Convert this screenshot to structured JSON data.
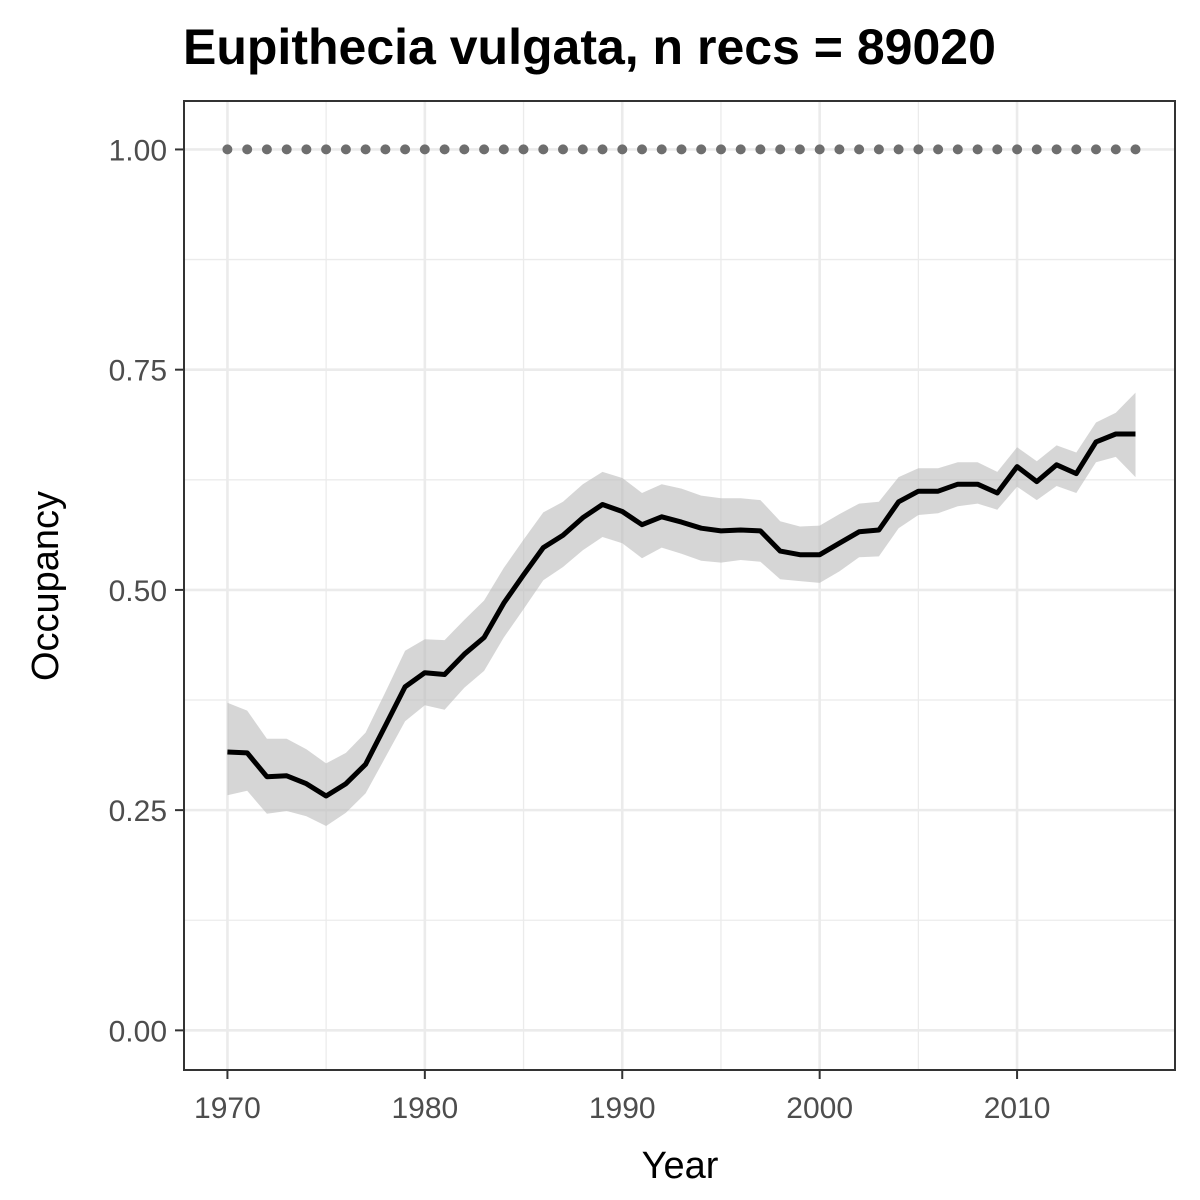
{
  "chart_data": {
    "type": "line",
    "title": "Eupithecia vulgata, n recs = 89020",
    "xlabel": "Year",
    "ylabel": "Occupancy",
    "xlim": [
      1967.8,
      2018.0
    ],
    "ylim": [
      -0.045,
      1.055
    ],
    "x_ticks": [
      1970,
      1980,
      1990,
      2000,
      2010
    ],
    "x_tick_labels": [
      "1970",
      "1980",
      "1990",
      "2000",
      "2010"
    ],
    "y_ticks": [
      0.0,
      0.25,
      0.5,
      0.75,
      1.0
    ],
    "y_tick_labels": [
      "0.00",
      "0.25",
      "0.50",
      "0.75",
      "1.00"
    ],
    "grid": true,
    "x": [
      1970,
      1971,
      1972,
      1973,
      1974,
      1975,
      1976,
      1977,
      1978,
      1979,
      1980,
      1981,
      1982,
      1983,
      1984,
      1985,
      1986,
      1987,
      1988,
      1989,
      1990,
      1991,
      1992,
      1993,
      1994,
      1995,
      1996,
      1997,
      1998,
      1999,
      2000,
      2001,
      2002,
      2003,
      2004,
      2005,
      2006,
      2007,
      2008,
      2009,
      2010,
      2011,
      2012,
      2013,
      2014,
      2015,
      2016
    ],
    "series": [
      {
        "values": [
          0.316,
          0.315,
          0.288,
          0.289,
          0.28,
          0.266,
          0.28,
          0.302,
          0.346,
          0.39,
          0.406,
          0.404,
          0.427,
          0.446,
          0.485,
          0.517,
          0.548,
          0.562,
          0.582,
          0.597,
          0.589,
          0.574,
          0.583,
          0.577,
          0.57,
          0.567,
          0.568,
          0.567,
          0.544,
          0.54,
          0.54,
          0.553,
          0.566,
          0.568,
          0.6,
          0.612,
          0.612,
          0.62,
          0.62,
          0.61,
          0.64,
          0.623,
          0.642,
          0.632,
          0.668,
          0.677,
          0.677
        ],
        "lower": [
          0.267,
          0.272,
          0.246,
          0.249,
          0.243,
          0.232,
          0.247,
          0.269,
          0.31,
          0.351,
          0.369,
          0.364,
          0.389,
          0.408,
          0.446,
          0.478,
          0.511,
          0.526,
          0.545,
          0.56,
          0.553,
          0.536,
          0.548,
          0.541,
          0.533,
          0.531,
          0.534,
          0.532,
          0.512,
          0.51,
          0.508,
          0.521,
          0.537,
          0.538,
          0.57,
          0.585,
          0.587,
          0.595,
          0.598,
          0.591,
          0.617,
          0.602,
          0.618,
          0.61,
          0.645,
          0.651,
          0.628
        ],
        "upper": [
          0.372,
          0.363,
          0.331,
          0.331,
          0.319,
          0.303,
          0.315,
          0.338,
          0.384,
          0.431,
          0.444,
          0.443,
          0.466,
          0.488,
          0.525,
          0.557,
          0.588,
          0.6,
          0.62,
          0.634,
          0.627,
          0.61,
          0.62,
          0.615,
          0.607,
          0.604,
          0.604,
          0.602,
          0.578,
          0.572,
          0.573,
          0.586,
          0.598,
          0.6,
          0.628,
          0.638,
          0.638,
          0.645,
          0.645,
          0.634,
          0.662,
          0.646,
          0.664,
          0.656,
          0.69,
          0.701,
          0.724
        ]
      },
      {
        "values": [
          1,
          1,
          1,
          1,
          1,
          1,
          1,
          1,
          1,
          1,
          1,
          1,
          1,
          1,
          1,
          1,
          1,
          1,
          1,
          1,
          1,
          1,
          1,
          1,
          1,
          1,
          1,
          1,
          1,
          1,
          1,
          1,
          1,
          1,
          1,
          1,
          1,
          1,
          1,
          1,
          1,
          1,
          1,
          1,
          1,
          1,
          1
        ]
      }
    ],
    "colors": {
      "line": "#000000",
      "ribbon": "#bdbdbd",
      "dots": "#6e6e6e",
      "grid": "#ebebeb",
      "panel_border": "#333333",
      "tick_text": "#4d4d4d"
    }
  }
}
